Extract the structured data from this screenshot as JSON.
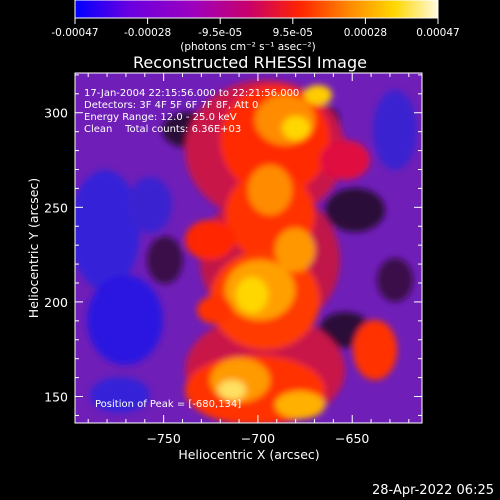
{
  "colorbar": {
    "tick_labels": [
      "-0.00047",
      "-0.00028",
      "-9.5e-05",
      "9.5e-05",
      "0.00028",
      "0.00047"
    ],
    "unit_label": "(photons cm⁻² s⁻¹ asec⁻²)",
    "colors": [
      "#0000ff",
      "#6a00e0",
      "#9b00c0",
      "#c8006a",
      "#ff2400",
      "#ff8c00",
      "#ffd700",
      "#fffbe0"
    ]
  },
  "plot": {
    "title": "Reconstructed RHESSI Image",
    "info_lines": [
      "17-Jan-2004 22:15:56.000 to 22:21:56.000",
      "Detectors: 3F 4F 5F 6F 7F 8F, Att 0",
      "Energy Range: 12.0 - 25.0 keV",
      "Clean    Total counts: 6.36E+03"
    ],
    "peak_label": "Position of Peak = [-680,134]",
    "x_axis": {
      "label": "Heliocentric X (arcsec)",
      "ticks": [
        "-750",
        "-700",
        "-650"
      ],
      "range": [
        -797,
        -613
      ]
    },
    "y_axis": {
      "label": "Heliocentric Y (arcsec)",
      "ticks": [
        "150",
        "200",
        "250",
        "300"
      ],
      "range": [
        136,
        321
      ]
    }
  },
  "footer": {
    "timestamp": "28-Apr-2022 06:25"
  }
}
